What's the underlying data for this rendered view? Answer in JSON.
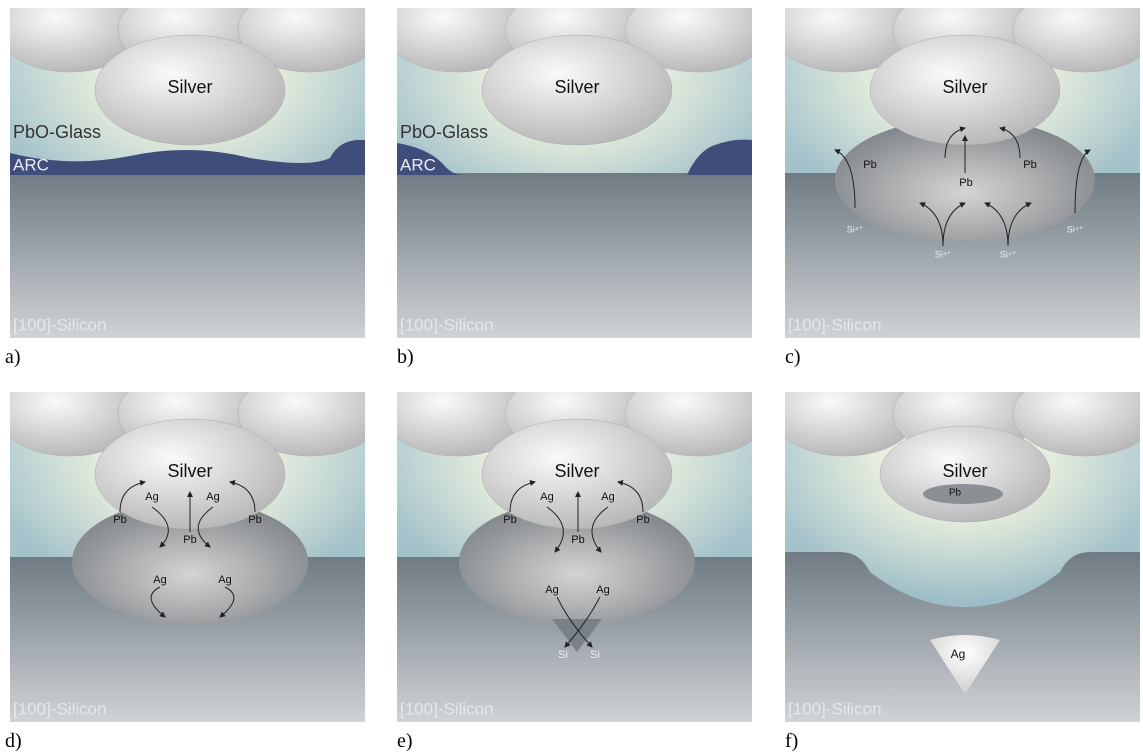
{
  "panels": [
    {
      "label": "a)",
      "silver": "Silver",
      "substrate": "[100]-Silicon",
      "annotations": [
        "PbO-Glass",
        "ARC"
      ]
    },
    {
      "label": "b)",
      "silver": "Silver",
      "substrate": "[100]-Silicon",
      "annotations": [
        "PbO-Glass",
        "ARC"
      ]
    },
    {
      "label": "c)",
      "silver": "Silver",
      "substrate": "[100]-Silicon",
      "annotations": [
        "Pb",
        "Pb",
        "Pb",
        "Si⁴⁺",
        "Si⁴⁺",
        "Si⁴⁺",
        "Si⁴⁺"
      ]
    },
    {
      "label": "d)",
      "silver": "Silver",
      "substrate": "[100]-Silicon",
      "annotations": [
        "Ag",
        "Ag",
        "Pb",
        "Pb",
        "Pb",
        "Ag",
        "Ag"
      ]
    },
    {
      "label": "e)",
      "silver": "Silver",
      "substrate": "[100]-Silicon",
      "annotations": [
        "Ag",
        "Ag",
        "Pb",
        "Pb",
        "Pb",
        "Ag",
        "Ag",
        "Si",
        "Si"
      ]
    },
    {
      "label": "f)",
      "silver": "Silver",
      "substrate": "[100]-Silicon",
      "annotations": [
        "Pb",
        "Ag"
      ]
    }
  ]
}
